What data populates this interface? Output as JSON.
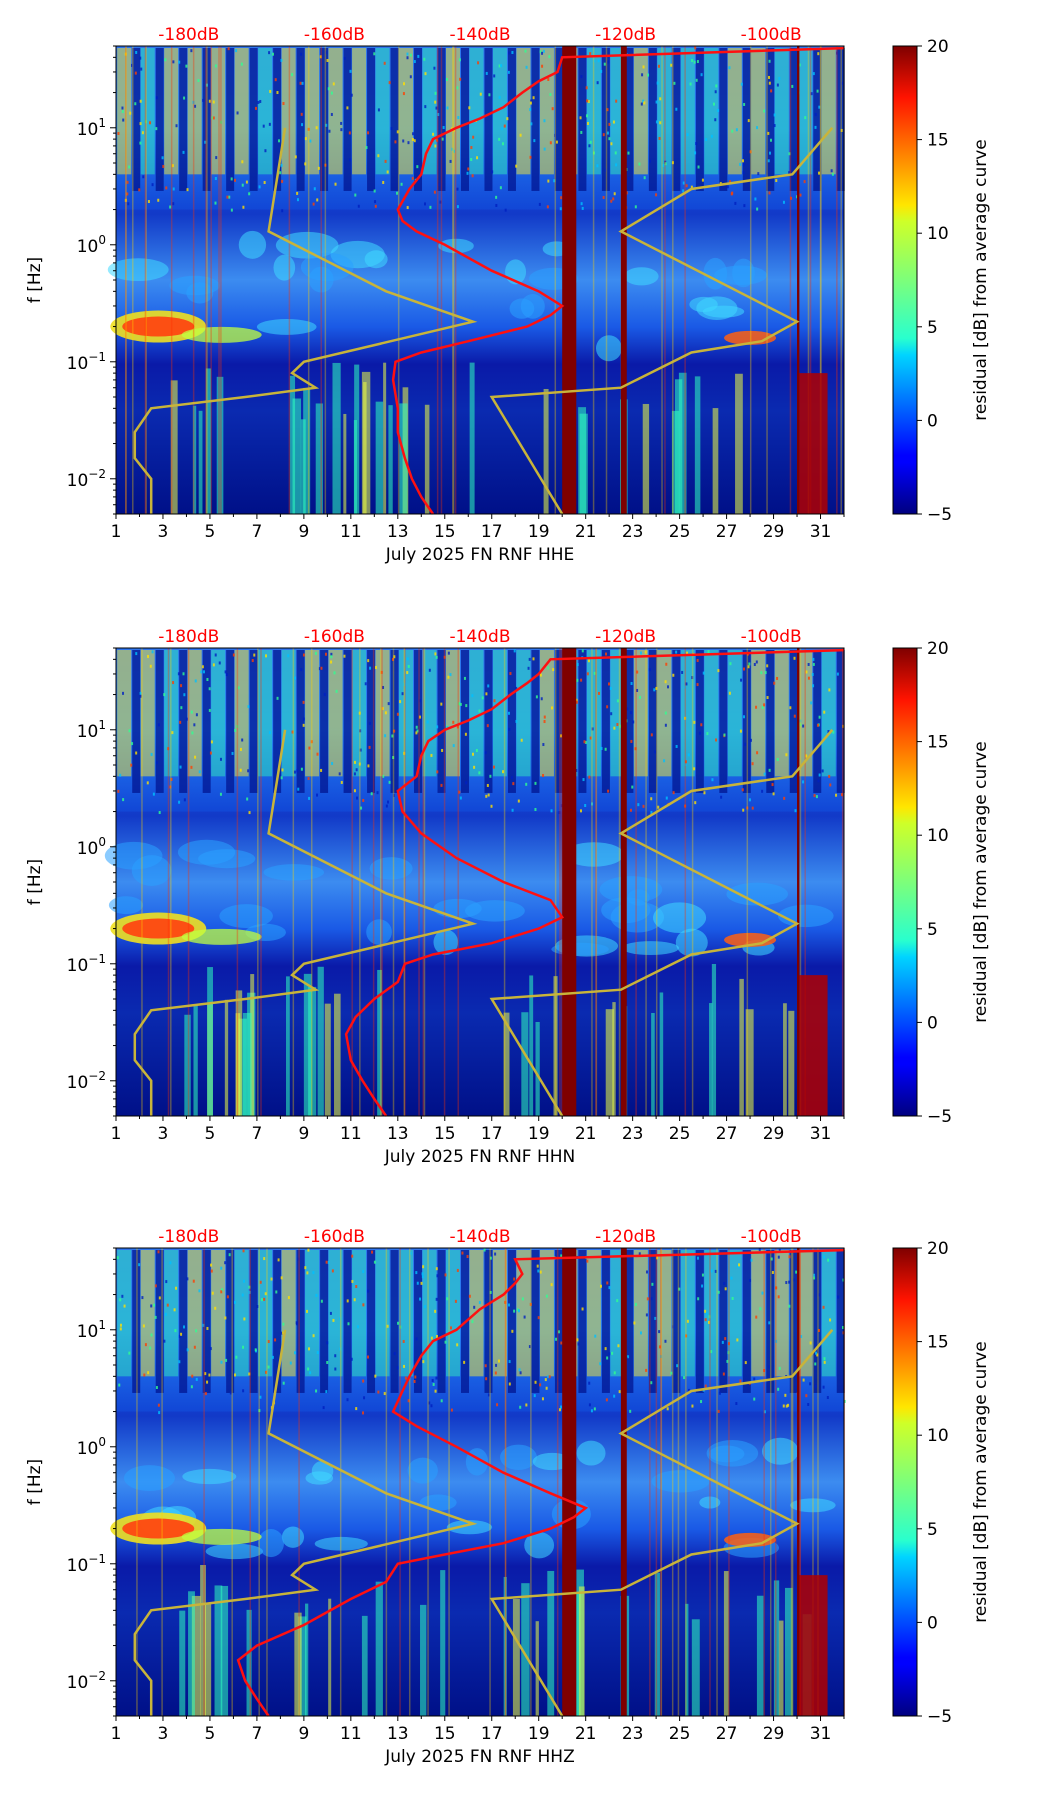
{
  "colors": {
    "noise_model_line": "#c8b43a",
    "psd_curve_line": "#ff1010",
    "db_label": "#ff0000",
    "colormap": "jet"
  },
  "chart_data": [
    {
      "type": "heatmap",
      "panel": "HHE",
      "xlabel": "July 2025 FN RNF  HHE",
      "ylabel": "f [Hz]",
      "x_ticks": [
        "1",
        "3",
        "5",
        "7",
        "9",
        "11",
        "13",
        "15",
        "17",
        "19",
        "21",
        "23",
        "25",
        "27",
        "29",
        "31"
      ],
      "x_range": [
        1,
        32
      ],
      "y_range": [
        0.005,
        50
      ],
      "y_scale": "log",
      "y_ticks": [
        {
          "value": 10,
          "base": "10",
          "exp": "1"
        },
        {
          "value": 1,
          "base": "10",
          "exp": "0"
        },
        {
          "value": 0.1,
          "base": "10",
          "exp": "−1"
        },
        {
          "value": 0.01,
          "base": "10",
          "exp": "−2"
        }
      ],
      "db_labels": [
        "-180dB",
        "-160dB",
        "-140dB",
        "-120dB",
        "-100dB"
      ],
      "colorbar": {
        "label": "residual [dB] from average curve",
        "ticks": [
          "20",
          "15",
          "10",
          "5",
          "0",
          "−5"
        ],
        "range": [
          -5,
          20
        ]
      },
      "psd_curve": [
        [
          14.5,
          0.005
        ],
        [
          14,
          0.007
        ],
        [
          13.6,
          0.01
        ],
        [
          13.3,
          0.015
        ],
        [
          13.0,
          0.025
        ],
        [
          13.0,
          0.04
        ],
        [
          12.8,
          0.07
        ],
        [
          12.9,
          0.1
        ],
        [
          14.0,
          0.12
        ],
        [
          16.0,
          0.15
        ],
        [
          18.5,
          0.2
        ],
        [
          19.5,
          0.25
        ],
        [
          20.0,
          0.3
        ],
        [
          19.0,
          0.4
        ],
        [
          17.0,
          0.6
        ],
        [
          15.0,
          1.0
        ],
        [
          13.8,
          1.3
        ],
        [
          13.2,
          1.6
        ],
        [
          13.0,
          2.0
        ],
        [
          13.5,
          3.0
        ],
        [
          14.0,
          4.0
        ],
        [
          14.2,
          6.0
        ],
        [
          14.5,
          8.0
        ],
        [
          15.5,
          10
        ],
        [
          16.5,
          12
        ],
        [
          17.5,
          15
        ],
        [
          18.3,
          20
        ],
        [
          19.0,
          25
        ],
        [
          19.8,
          30
        ],
        [
          20.0,
          40
        ],
        [
          32,
          48
        ]
      ],
      "noise_model": [
        [
          2.5,
          0.005
        ],
        [
          2.5,
          0.01
        ],
        [
          1.8,
          0.015
        ],
        [
          1.8,
          0.025
        ],
        [
          2.5,
          0.04
        ],
        [
          6.5,
          0.05
        ],
        [
          9.5,
          0.06
        ],
        [
          8.5,
          0.08
        ],
        [
          9.0,
          0.1
        ],
        [
          16.2,
          0.22
        ],
        [
          12.5,
          0.4
        ],
        [
          7.5,
          1.3
        ],
        [
          8.2,
          10
        ],
        [
          20.0,
          0.005
        ],
        [
          17.0,
          0.05
        ],
        [
          22.5,
          0.06
        ],
        [
          25.5,
          0.12
        ],
        [
          28.5,
          0.15
        ],
        [
          30.0,
          0.22
        ],
        [
          22.5,
          1.3
        ],
        [
          25.5,
          3.0
        ],
        [
          29.8,
          4.0
        ],
        [
          31.5,
          10
        ]
      ]
    },
    {
      "type": "heatmap",
      "panel": "HHN",
      "xlabel": "July 2025 FN RNF  HHN",
      "ylabel": "f [Hz]",
      "x_ticks": [
        "1",
        "3",
        "5",
        "7",
        "9",
        "11",
        "13",
        "15",
        "17",
        "19",
        "21",
        "23",
        "25",
        "27",
        "29",
        "31"
      ],
      "x_range": [
        1,
        32
      ],
      "y_range": [
        0.005,
        50
      ],
      "y_scale": "log",
      "y_ticks": [
        {
          "value": 10,
          "base": "10",
          "exp": "1"
        },
        {
          "value": 1,
          "base": "10",
          "exp": "0"
        },
        {
          "value": 0.1,
          "base": "10",
          "exp": "−1"
        },
        {
          "value": 0.01,
          "base": "10",
          "exp": "−2"
        }
      ],
      "db_labels": [
        "-180dB",
        "-160dB",
        "-140dB",
        "-120dB",
        "-100dB"
      ],
      "colorbar": {
        "label": "residual [dB] from average curve",
        "ticks": [
          "20",
          "15",
          "10",
          "5",
          "0",
          "−5"
        ],
        "range": [
          -5,
          20
        ]
      },
      "psd_curve": [
        [
          12.5,
          0.005
        ],
        [
          12.0,
          0.007
        ],
        [
          11.5,
          0.01
        ],
        [
          11.0,
          0.015
        ],
        [
          10.8,
          0.025
        ],
        [
          11.2,
          0.035
        ],
        [
          12.0,
          0.05
        ],
        [
          13.0,
          0.07
        ],
        [
          13.3,
          0.1
        ],
        [
          14.5,
          0.12
        ],
        [
          17.0,
          0.15
        ],
        [
          19.0,
          0.2
        ],
        [
          20.0,
          0.25
        ],
        [
          19.5,
          0.35
        ],
        [
          17.5,
          0.5
        ],
        [
          15.5,
          0.8
        ],
        [
          14.0,
          1.3
        ],
        [
          13.2,
          2.0
        ],
        [
          13.0,
          3.0
        ],
        [
          13.8,
          4.0
        ],
        [
          14.0,
          6.0
        ],
        [
          14.3,
          8.0
        ],
        [
          15.0,
          10
        ],
        [
          16.0,
          12
        ],
        [
          17.0,
          15
        ],
        [
          17.8,
          20
        ],
        [
          18.5,
          25
        ],
        [
          19.0,
          30
        ],
        [
          19.5,
          40
        ],
        [
          32,
          48
        ]
      ],
      "noise_model": [
        [
          2.5,
          0.005
        ],
        [
          2.5,
          0.01
        ],
        [
          1.8,
          0.015
        ],
        [
          1.8,
          0.025
        ],
        [
          2.5,
          0.04
        ],
        [
          6.5,
          0.05
        ],
        [
          9.5,
          0.06
        ],
        [
          8.5,
          0.08
        ],
        [
          9.0,
          0.1
        ],
        [
          16.2,
          0.22
        ],
        [
          12.5,
          0.4
        ],
        [
          7.5,
          1.3
        ],
        [
          8.2,
          10
        ],
        [
          20.0,
          0.005
        ],
        [
          17.0,
          0.05
        ],
        [
          22.5,
          0.06
        ],
        [
          25.5,
          0.12
        ],
        [
          28.5,
          0.15
        ],
        [
          30.0,
          0.22
        ],
        [
          22.5,
          1.3
        ],
        [
          25.5,
          3.0
        ],
        [
          29.8,
          4.0
        ],
        [
          31.5,
          10
        ]
      ]
    },
    {
      "type": "heatmap",
      "panel": "HHZ",
      "xlabel": "July 2025 FN RNF  HHZ",
      "ylabel": "f [Hz]",
      "x_ticks": [
        "1",
        "3",
        "5",
        "7",
        "9",
        "11",
        "13",
        "15",
        "17",
        "19",
        "21",
        "23",
        "25",
        "27",
        "29",
        "31"
      ],
      "x_range": [
        1,
        32
      ],
      "y_range": [
        0.005,
        50
      ],
      "y_scale": "log",
      "y_ticks": [
        {
          "value": 10,
          "base": "10",
          "exp": "1"
        },
        {
          "value": 1,
          "base": "10",
          "exp": "0"
        },
        {
          "value": 0.1,
          "base": "10",
          "exp": "−1"
        },
        {
          "value": 0.01,
          "base": "10",
          "exp": "−2"
        }
      ],
      "db_labels": [
        "-180dB",
        "-160dB",
        "-140dB",
        "-120dB",
        "-100dB"
      ],
      "colorbar": {
        "label": "residual [dB] from average curve",
        "ticks": [
          "20",
          "15",
          "10",
          "5",
          "0",
          "−5"
        ],
        "range": [
          -5,
          20
        ]
      },
      "psd_curve": [
        [
          7.5,
          0.005
        ],
        [
          7.0,
          0.007
        ],
        [
          6.5,
          0.01
        ],
        [
          6.2,
          0.015
        ],
        [
          7.0,
          0.02
        ],
        [
          9.0,
          0.03
        ],
        [
          11.0,
          0.05
        ],
        [
          12.5,
          0.07
        ],
        [
          13.0,
          0.1
        ],
        [
          15.0,
          0.12
        ],
        [
          17.5,
          0.15
        ],
        [
          19.5,
          0.2
        ],
        [
          20.5,
          0.25
        ],
        [
          21.0,
          0.3
        ],
        [
          19.5,
          0.4
        ],
        [
          17.5,
          0.6
        ],
        [
          15.5,
          1.0
        ],
        [
          13.8,
          1.5
        ],
        [
          12.8,
          2.0
        ],
        [
          13.2,
          3.0
        ],
        [
          13.5,
          4.0
        ],
        [
          14.0,
          6.0
        ],
        [
          14.5,
          8.0
        ],
        [
          15.5,
          10
        ],
        [
          16.5,
          15
        ],
        [
          17.5,
          20
        ],
        [
          18.0,
          25
        ],
        [
          18.3,
          30
        ],
        [
          18.0,
          40
        ],
        [
          32,
          48
        ]
      ],
      "noise_model": [
        [
          2.5,
          0.005
        ],
        [
          2.5,
          0.01
        ],
        [
          1.8,
          0.015
        ],
        [
          1.8,
          0.025
        ],
        [
          2.5,
          0.04
        ],
        [
          6.5,
          0.05
        ],
        [
          9.5,
          0.06
        ],
        [
          8.5,
          0.08
        ],
        [
          9.0,
          0.1
        ],
        [
          16.2,
          0.22
        ],
        [
          12.5,
          0.4
        ],
        [
          7.5,
          1.3
        ],
        [
          8.2,
          10
        ],
        [
          20.0,
          0.005
        ],
        [
          17.0,
          0.05
        ],
        [
          22.5,
          0.06
        ],
        [
          25.5,
          0.12
        ],
        [
          28.5,
          0.15
        ],
        [
          30.0,
          0.22
        ],
        [
          22.5,
          1.3
        ],
        [
          25.5,
          3.0
        ],
        [
          29.8,
          4.0
        ],
        [
          31.5,
          10
        ]
      ]
    }
  ]
}
